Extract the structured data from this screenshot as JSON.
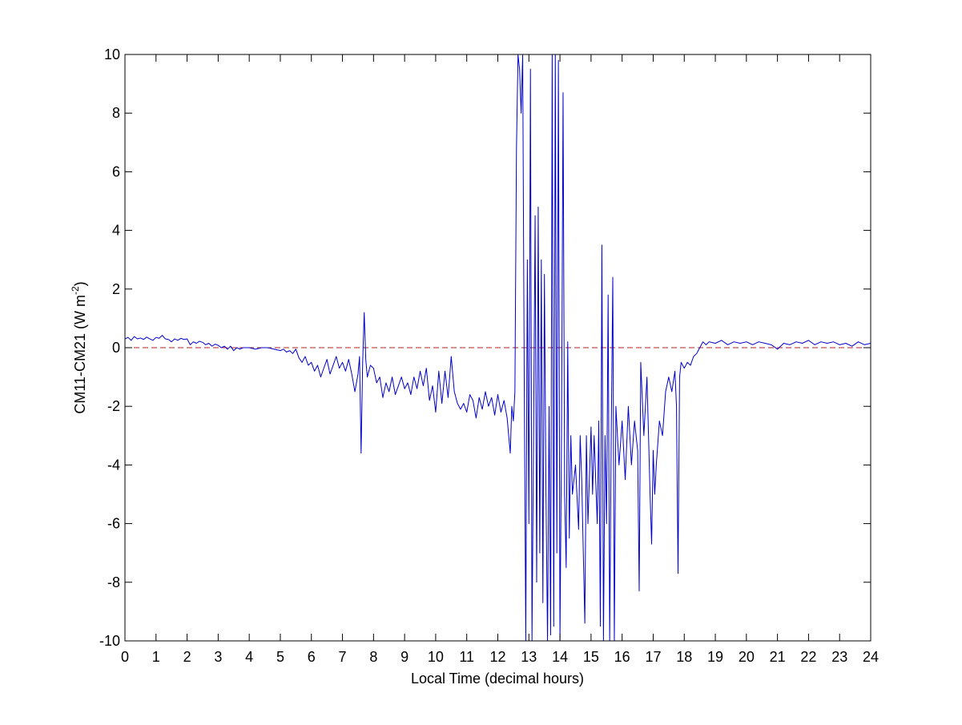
{
  "chart_data": {
    "type": "line",
    "xlabel": "Local Time (decimal hours)",
    "ylabel": [
      "CM11-CM21 (W m",
      "-2",
      ")"
    ],
    "xlim": [
      0,
      24
    ],
    "ylim": [
      -10,
      10
    ],
    "xticks": [
      0,
      1,
      2,
      3,
      4,
      5,
      6,
      7,
      8,
      9,
      10,
      11,
      12,
      13,
      14,
      15,
      16,
      17,
      18,
      19,
      20,
      21,
      22,
      23,
      24
    ],
    "yticks": [
      -10,
      -8,
      -6,
      -4,
      -2,
      0,
      2,
      4,
      6,
      8,
      10
    ],
    "hline": {
      "value": 0,
      "color": "#b22222"
    },
    "x": [
      0,
      0.1,
      0.2,
      0.3,
      0.4,
      0.5,
      0.6,
      0.7,
      0.8,
      0.9,
      1,
      1.1,
      1.2,
      1.3,
      1.4,
      1.5,
      1.6,
      1.7,
      1.8,
      1.9,
      2,
      2.1,
      2.2,
      2.3,
      2.4,
      2.5,
      2.6,
      2.7,
      2.8,
      2.9,
      3,
      3.1,
      3.2,
      3.3,
      3.4,
      3.5,
      3.6,
      3.7,
      3.8,
      3.9,
      4,
      4.2,
      4.4,
      4.6,
      4.8,
      5,
      5.1,
      5.2,
      5.3,
      5.4,
      5.5,
      5.6,
      5.7,
      5.8,
      5.9,
      6,
      6.1,
      6.2,
      6.3,
      6.4,
      6.5,
      6.6,
      6.7,
      6.8,
      6.9,
      7,
      7.1,
      7.2,
      7.3,
      7.4,
      7.5,
      7.55,
      7.6,
      7.65,
      7.7,
      7.75,
      7.8,
      7.9,
      8,
      8.1,
      8.2,
      8.3,
      8.4,
      8.5,
      8.6,
      8.7,
      8.8,
      8.9,
      9,
      9.1,
      9.2,
      9.3,
      9.4,
      9.5,
      9.6,
      9.7,
      9.8,
      9.9,
      10,
      10.1,
      10.2,
      10.3,
      10.4,
      10.5,
      10.6,
      10.7,
      10.8,
      10.9,
      11,
      11.1,
      11.2,
      11.3,
      11.4,
      11.5,
      11.6,
      11.7,
      11.8,
      11.9,
      12,
      12.1,
      12.2,
      12.3,
      12.4,
      12.45,
      12.5,
      12.55,
      12.6,
      12.65,
      12.7,
      12.75,
      12.8,
      12.85,
      12.9,
      12.95,
      13,
      13.05,
      13.1,
      13.15,
      13.2,
      13.25,
      13.3,
      13.35,
      13.4,
      13.45,
      13.5,
      13.55,
      13.6,
      13.65,
      13.7,
      13.75,
      13.8,
      13.85,
      13.9,
      13.95,
      14,
      14.05,
      14.1,
      14.15,
      14.2,
      14.25,
      14.3,
      14.35,
      14.4,
      14.5,
      14.6,
      14.65,
      14.7,
      14.8,
      14.85,
      14.9,
      15,
      15.05,
      15.1,
      15.2,
      15.25,
      15.3,
      15.35,
      15.4,
      15.45,
      15.5,
      15.55,
      15.6,
      15.65,
      15.7,
      15.75,
      15.8,
      15.9,
      16,
      16.1,
      16.2,
      16.3,
      16.4,
      16.5,
      16.55,
      16.6,
      16.7,
      16.8,
      16.9,
      16.95,
      17,
      17.05,
      17.1,
      17.2,
      17.3,
      17.4,
      17.5,
      17.6,
      17.7,
      17.75,
      17.8,
      17.85,
      17.9,
      18,
      18.1,
      18.2,
      18.3,
      18.4,
      18.5,
      18.6,
      18.7,
      18.8,
      19,
      19.2,
      19.4,
      19.6,
      19.8,
      20,
      20.2,
      20.4,
      20.6,
      20.8,
      21,
      21.2,
      21.4,
      21.6,
      21.8,
      22,
      22.2,
      22.4,
      22.6,
      22.8,
      23,
      23.2,
      23.4,
      23.6,
      23.8,
      24
    ],
    "series": [
      {
        "color": "#0000cc",
        "values": [
          0.3,
          0.35,
          0.25,
          0.38,
          0.3,
          0.33,
          0.28,
          0.36,
          0.3,
          0.25,
          0.35,
          0.32,
          0.42,
          0.3,
          0.28,
          0.2,
          0.3,
          0.25,
          0.32,
          0.28,
          0.3,
          0.1,
          0.2,
          0.15,
          0.22,
          0.18,
          0.1,
          0.15,
          0.05,
          0.12,
          0.08,
          0,
          0.05,
          -0.05,
          0.05,
          -0.1,
          0,
          -0.05,
          0,
          0,
          0,
          -0.05,
          0,
          0,
          -0.05,
          -0.1,
          -0.05,
          -0.15,
          -0.1,
          -0.2,
          -0.05,
          -0.35,
          -0.5,
          -0.3,
          -0.6,
          -0.5,
          -0.8,
          -0.6,
          -1,
          -0.7,
          -0.4,
          -0.9,
          -0.6,
          -0.3,
          -0.7,
          -0.5,
          -0.8,
          -0.4,
          -0.9,
          -1.5,
          -0.9,
          -0.3,
          -3.6,
          -0.5,
          1.2,
          -0.4,
          -1,
          -0.6,
          -0.7,
          -1.2,
          -1,
          -1.7,
          -1.2,
          -1.5,
          -1,
          -1.6,
          -1.3,
          -1,
          -1.4,
          -1.2,
          -1.6,
          -1,
          -1.4,
          -0.8,
          -1.3,
          -0.7,
          -1.8,
          -1.3,
          -2.2,
          -0.8,
          -1.9,
          -0.8,
          -1.7,
          -0.3,
          -1.5,
          -1.9,
          -2.1,
          -1.9,
          -2.2,
          -1.6,
          -1.8,
          -2.4,
          -1.7,
          -2.1,
          -1.5,
          -2,
          -1.7,
          -2.3,
          -1.6,
          -2.2,
          -1.8,
          -2.4,
          -3.6,
          -2,
          -2.5,
          -1.5,
          6.8,
          10,
          9.5,
          8,
          10,
          -1,
          -10,
          3,
          -6,
          9.5,
          -10,
          -3,
          4.5,
          -8,
          4.8,
          -7,
          3,
          -8.7,
          2.5,
          -5,
          -10,
          -2,
          -9.8,
          10,
          -9.5,
          10,
          -7,
          9.8,
          -10,
          -3,
          8.7,
          -5,
          -7.5,
          0.2,
          -6.5,
          -3,
          -5,
          -4,
          -6.2,
          -3,
          -4.5,
          -9.4,
          -3,
          -6,
          -2.7,
          -5,
          -3,
          -6,
          -2.5,
          -9.5,
          3.5,
          -10,
          -3,
          -6,
          1.8,
          -10,
          -3,
          2.4,
          -10,
          -2,
          -4,
          -2.5,
          -4.5,
          -2,
          -4,
          -2.5,
          -3.5,
          -8.3,
          -0.5,
          -3,
          -1,
          -5,
          -6.7,
          -3.5,
          -5,
          -4,
          -2.5,
          -3,
          -1.5,
          -1,
          -1.5,
          -0.8,
          -2,
          -7.7,
          -1,
          -0.5,
          -0.7,
          -0.5,
          -0.6,
          -0.3,
          -0.2,
          0,
          0.2,
          0.1,
          0.2,
          0.15,
          0.25,
          0.1,
          0.2,
          0.15,
          0.2,
          0.1,
          0.2,
          0.15,
          0.1,
          -0.05,
          0.15,
          0.1,
          0.2,
          0.15,
          0.25,
          0.1,
          0.2,
          0.15,
          0.2,
          0.1,
          0.15,
          0.05,
          0.2,
          0.1,
          0.15
        ]
      }
    ]
  }
}
